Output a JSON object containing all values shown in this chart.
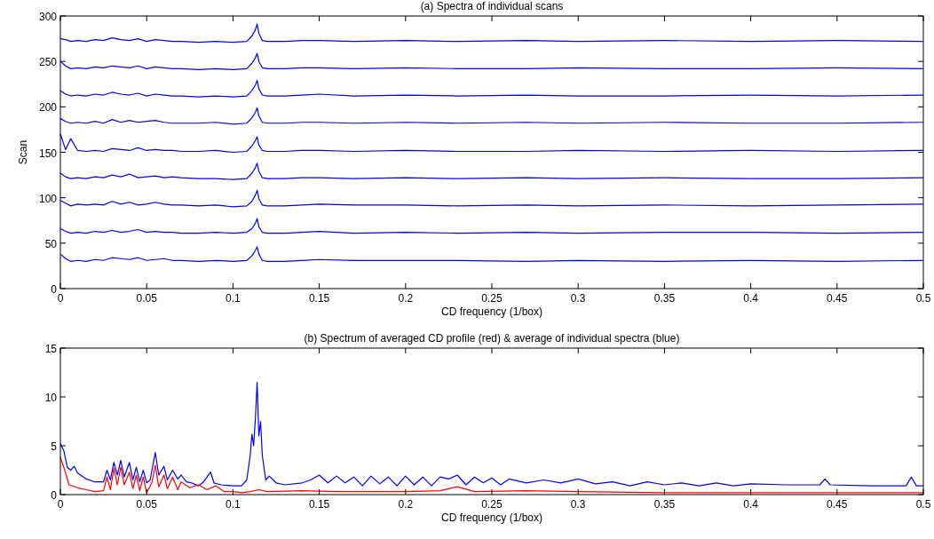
{
  "chart_data": [
    {
      "type": "line",
      "title": "(a) Spectra of individual scans",
      "xlabel": "CD frequency (1/box)",
      "ylabel": "Scan",
      "xlim": [
        0,
        0.5
      ],
      "xticks": [
        0,
        0.05,
        0.1,
        0.15,
        0.2,
        0.25,
        0.3,
        0.35,
        0.4,
        0.45,
        0.5
      ],
      "ylim": [
        0,
        300
      ],
      "yticks": [
        0,
        50,
        100,
        150,
        200,
        250,
        300
      ],
      "grid": false,
      "x": [
        0,
        0.003,
        0.006,
        0.01,
        0.015,
        0.02,
        0.025,
        0.03,
        0.035,
        0.04,
        0.045,
        0.05,
        0.055,
        0.06,
        0.065,
        0.07,
        0.08,
        0.09,
        0.1,
        0.108,
        0.111,
        0.113,
        0.114,
        0.115,
        0.117,
        0.12,
        0.13,
        0.14,
        0.15,
        0.17,
        0.2,
        0.23,
        0.27,
        0.3,
        0.35,
        0.4,
        0.45,
        0.5
      ],
      "series": [
        {
          "color": "#0000ff",
          "values": [
            38,
            33,
            30,
            31,
            30,
            32,
            31,
            34,
            33,
            32,
            34,
            31,
            32,
            33,
            31,
            31,
            30,
            31,
            30,
            31,
            36,
            42,
            46,
            38,
            31,
            30,
            30,
            31,
            32,
            31,
            31,
            31,
            30,
            31,
            30,
            31,
            30,
            31
          ]
        },
        {
          "color": "#0000ff",
          "values": [
            66,
            63,
            61,
            62,
            61,
            63,
            62,
            64,
            62,
            63,
            65,
            62,
            63,
            62,
            62,
            61,
            61,
            62,
            61,
            62,
            66,
            72,
            77,
            68,
            62,
            61,
            61,
            62,
            63,
            61,
            62,
            61,
            62,
            61,
            62,
            62,
            61,
            62
          ]
        },
        {
          "color": "#0000ff",
          "values": [
            97,
            94,
            91,
            93,
            92,
            93,
            92,
            96,
            93,
            95,
            92,
            93,
            95,
            93,
            92,
            92,
            91,
            92,
            90,
            91,
            96,
            103,
            108,
            99,
            92,
            91,
            91,
            92,
            93,
            92,
            92,
            91,
            92,
            91,
            92,
            91,
            92,
            93
          ]
        },
        {
          "color": "#0000ff",
          "values": [
            127,
            123,
            121,
            122,
            121,
            123,
            122,
            125,
            123,
            126,
            122,
            123,
            124,
            122,
            123,
            122,
            121,
            121,
            120,
            121,
            127,
            133,
            138,
            129,
            122,
            121,
            121,
            122,
            122,
            121,
            122,
            121,
            122,
            121,
            122,
            121,
            121,
            122
          ]
        },
        {
          "color": "#0000ff",
          "values": [
            170,
            153,
            165,
            152,
            151,
            152,
            151,
            154,
            153,
            152,
            155,
            152,
            153,
            152,
            152,
            151,
            151,
            152,
            150,
            151,
            157,
            163,
            167,
            158,
            152,
            151,
            151,
            152,
            152,
            151,
            152,
            151,
            151,
            152,
            151,
            152,
            151,
            152
          ]
        },
        {
          "color": "#0000ff",
          "values": [
            187,
            184,
            182,
            183,
            182,
            184,
            182,
            186,
            183,
            185,
            183,
            184,
            185,
            183,
            182,
            182,
            182,
            183,
            181,
            182,
            188,
            194,
            199,
            190,
            183,
            182,
            182,
            183,
            183,
            182,
            183,
            182,
            183,
            182,
            183,
            182,
            182,
            183
          ]
        },
        {
          "color": "#0000ff",
          "values": [
            218,
            214,
            212,
            213,
            212,
            214,
            213,
            216,
            214,
            213,
            215,
            212,
            214,
            213,
            212,
            212,
            211,
            212,
            211,
            212,
            218,
            224,
            229,
            220,
            213,
            212,
            212,
            213,
            214,
            212,
            213,
            212,
            213,
            212,
            212,
            213,
            212,
            213
          ]
        },
        {
          "color": "#0000ff",
          "values": [
            250,
            245,
            242,
            243,
            242,
            244,
            243,
            245,
            244,
            243,
            245,
            242,
            244,
            243,
            242,
            242,
            241,
            242,
            241,
            242,
            248,
            254,
            259,
            250,
            243,
            242,
            242,
            243,
            243,
            242,
            243,
            242,
            242,
            243,
            242,
            242,
            243,
            242
          ]
        },
        {
          "color": "#0000ff",
          "values": [
            275,
            274,
            272,
            273,
            272,
            274,
            273,
            276,
            274,
            273,
            275,
            272,
            274,
            273,
            272,
            272,
            271,
            272,
            271,
            272,
            278,
            285,
            291,
            281,
            273,
            272,
            272,
            273,
            273,
            272,
            273,
            272,
            273,
            272,
            273,
            272,
            273,
            272
          ]
        }
      ]
    },
    {
      "type": "line",
      "title": "(b) Spectrum of averaged CD profile (red) & average of individual spectra (blue)",
      "xlabel": "CD frequency (1/box)",
      "xlim": [
        0,
        0.5
      ],
      "xticks": [
        0,
        0.05,
        0.1,
        0.15,
        0.2,
        0.25,
        0.3,
        0.35,
        0.4,
        0.45,
        0.5
      ],
      "ylim": [
        0,
        15
      ],
      "yticks": [
        0,
        5,
        10,
        15
      ],
      "grid": false,
      "series": [
        {
          "color": "#0000ff",
          "x": [
            0,
            0.002,
            0.004,
            0.006,
            0.008,
            0.01,
            0.015,
            0.02,
            0.025,
            0.027,
            0.029,
            0.031,
            0.033,
            0.035,
            0.037,
            0.04,
            0.042,
            0.044,
            0.046,
            0.048,
            0.05,
            0.052,
            0.055,
            0.057,
            0.06,
            0.062,
            0.065,
            0.068,
            0.07,
            0.073,
            0.076,
            0.08,
            0.083,
            0.087,
            0.089,
            0.093,
            0.1,
            0.105,
            0.108,
            0.11,
            0.111,
            0.112,
            0.113,
            0.114,
            0.115,
            0.116,
            0.117,
            0.119,
            0.121,
            0.125,
            0.13,
            0.14,
            0.145,
            0.15,
            0.155,
            0.16,
            0.165,
            0.17,
            0.175,
            0.18,
            0.185,
            0.19,
            0.195,
            0.2,
            0.205,
            0.21,
            0.215,
            0.22,
            0.225,
            0.23,
            0.235,
            0.24,
            0.245,
            0.25,
            0.255,
            0.26,
            0.27,
            0.28,
            0.29,
            0.3,
            0.31,
            0.32,
            0.33,
            0.34,
            0.35,
            0.36,
            0.37,
            0.38,
            0.39,
            0.4,
            0.42,
            0.44,
            0.443,
            0.446,
            0.47,
            0.49,
            0.493,
            0.496,
            0.5
          ],
          "values": [
            5.2,
            4.5,
            2.8,
            2.5,
            2.9,
            2.2,
            1.6,
            1.3,
            1.3,
            2.5,
            1.5,
            3.3,
            2,
            3.5,
            1.8,
            3.3,
            1.5,
            2.8,
            1.3,
            2.5,
            1.2,
            1.5,
            4.3,
            2,
            2.9,
            1.5,
            2.5,
            1.6,
            2,
            1.3,
            1.2,
            0.9,
            1.3,
            2.3,
            1.2,
            1,
            0.9,
            0.9,
            1.5,
            4,
            6.2,
            5,
            7.8,
            11.5,
            6,
            7.5,
            4,
            1.5,
            1.9,
            1.2,
            1,
            1.2,
            1.5,
            2,
            1.2,
            1.9,
            1.2,
            1.8,
            0.9,
            1.9,
            1.1,
            1.8,
            0.9,
            1.9,
            1,
            1.8,
            0.9,
            1.8,
            1.6,
            2,
            1,
            1.8,
            1.2,
            1.7,
            1,
            1.6,
            1.2,
            1.5,
            1.2,
            1.6,
            1.1,
            1.3,
            0.9,
            1.3,
            1,
            1.2,
            0.9,
            1.2,
            0.9,
            1.1,
            1,
            1,
            1.6,
            1,
            0.9,
            0.9,
            1.8,
            0.9,
            0.9
          ]
        },
        {
          "color": "#ff0000",
          "x": [
            0,
            0.002,
            0.005,
            0.01,
            0.015,
            0.02,
            0.025,
            0.027,
            0.029,
            0.031,
            0.033,
            0.035,
            0.037,
            0.04,
            0.042,
            0.044,
            0.046,
            0.048,
            0.05,
            0.053,
            0.055,
            0.057,
            0.06,
            0.062,
            0.065,
            0.068,
            0.07,
            0.075,
            0.08,
            0.085,
            0.09,
            0.095,
            0.1,
            0.105,
            0.11,
            0.115,
            0.12,
            0.14,
            0.16,
            0.18,
            0.2,
            0.22,
            0.23,
            0.24,
            0.27,
            0.3,
            0.35,
            0.4,
            0.45,
            0.5
          ],
          "values": [
            3.8,
            2.8,
            1,
            0.7,
            0.5,
            0.3,
            0.4,
            1.8,
            0.5,
            2.7,
            1,
            2.8,
            1,
            2.3,
            0.6,
            2,
            0.4,
            1.8,
            0.2,
            1.2,
            3,
            0.8,
            2,
            0.6,
            1.8,
            0.5,
            1.3,
            0.7,
            1,
            0.5,
            0.9,
            0.3,
            0.3,
            0.2,
            0.3,
            0.5,
            0.3,
            0.4,
            0.3,
            0.3,
            0.3,
            0.4,
            0.8,
            0.3,
            0.4,
            0.3,
            0.2,
            0.2,
            0.2,
            0.2
          ]
        }
      ]
    }
  ]
}
